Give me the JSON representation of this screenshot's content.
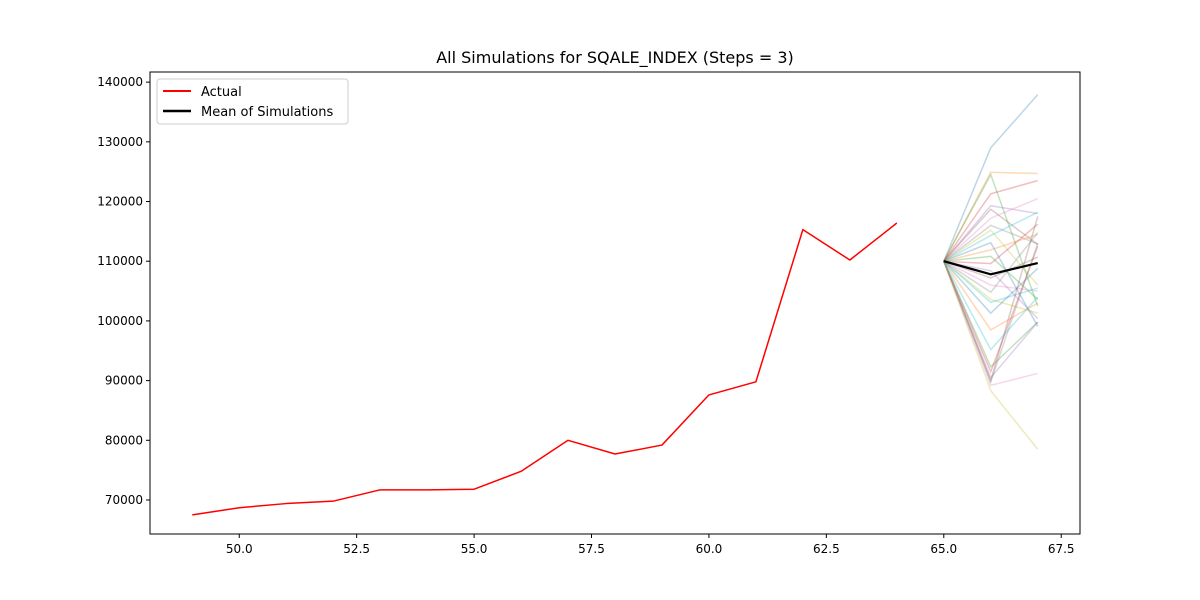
{
  "chart_data": {
    "type": "line",
    "title": "All Simulations for SQALE_INDEX (Steps = 3)",
    "xlabel": "",
    "ylabel": "",
    "xlim": [
      48.1,
      67.9
    ],
    "ylim": [
      64300,
      141700
    ],
    "xticks": [
      50.0,
      52.5,
      55.0,
      57.5,
      60.0,
      62.5,
      65.0,
      67.5
    ],
    "xtick_labels": [
      "50.0",
      "52.5",
      "55.0",
      "57.5",
      "60.0",
      "62.5",
      "65.0",
      "67.5"
    ],
    "yticks": [
      70000,
      80000,
      90000,
      100000,
      110000,
      120000,
      130000,
      140000
    ],
    "ytick_labels": [
      "70000",
      "80000",
      "90000",
      "100000",
      "110000",
      "120000",
      "130000",
      "140000"
    ],
    "grid": false,
    "legend_position": "upper-left",
    "actual": {
      "name": "Actual",
      "color": "#ff0000",
      "x": [
        49,
        50,
        51,
        52,
        53,
        54,
        55,
        56,
        57,
        58,
        59,
        60,
        61,
        62,
        63,
        64
      ],
      "y": [
        67500,
        68700,
        69400,
        69800,
        71700,
        71700,
        71800,
        74800,
        80000,
        77700,
        79200,
        87600,
        89800,
        115300,
        110200,
        116400
      ]
    },
    "mean": {
      "name": "Mean of Simulations",
      "color": "#000000",
      "x": [
        65,
        66,
        67
      ],
      "y": [
        110000,
        107800,
        109700
      ]
    },
    "simulations": {
      "x": [
        65,
        66,
        67
      ],
      "colors": [
        "#1f77b4",
        "#ff7f0e",
        "#2ca02c",
        "#d62728",
        "#9467bd",
        "#8c564b",
        "#e377c2",
        "#7f7f7f",
        "#bcbd22",
        "#17becf"
      ],
      "runs": [
        [
          110000,
          129000,
          137900
        ],
        [
          110000,
          124900,
          124700
        ],
        [
          110000,
          124500,
          102500
        ],
        [
          110000,
          121300,
          123500
        ],
        [
          110000,
          119300,
          118000
        ],
        [
          110000,
          118700,
          112800
        ],
        [
          110000,
          117200,
          120500
        ],
        [
          110000,
          116000,
          112900
        ],
        [
          110000,
          115200,
          106000
        ],
        [
          110000,
          114300,
          118200
        ],
        [
          110000,
          113100,
          99100
        ],
        [
          110000,
          111900,
          114500
        ],
        [
          110000,
          110800,
          103600
        ],
        [
          110000,
          109600,
          116200
        ],
        [
          110000,
          108400,
          100400
        ],
        [
          110000,
          107200,
          110700
        ],
        [
          110000,
          106000,
          105000
        ],
        [
          110000,
          104800,
          114800
        ],
        [
          110000,
          103600,
          101300
        ],
        [
          110000,
          103100,
          105500
        ],
        [
          110000,
          101300,
          108800
        ],
        [
          110000,
          98500,
          103000
        ],
        [
          110000,
          92300,
          99800
        ],
        [
          110000,
          91500,
          112500
        ],
        [
          110000,
          90500,
          99800
        ],
        [
          110000,
          90000,
          117500
        ],
        [
          110000,
          89200,
          91200
        ],
        [
          110000,
          89800,
          113000
        ],
        [
          110000,
          88300,
          78500
        ],
        [
          110000,
          95200,
          104000
        ]
      ]
    }
  },
  "legend": {
    "actual_label": "Actual",
    "mean_label": "Mean of Simulations"
  }
}
